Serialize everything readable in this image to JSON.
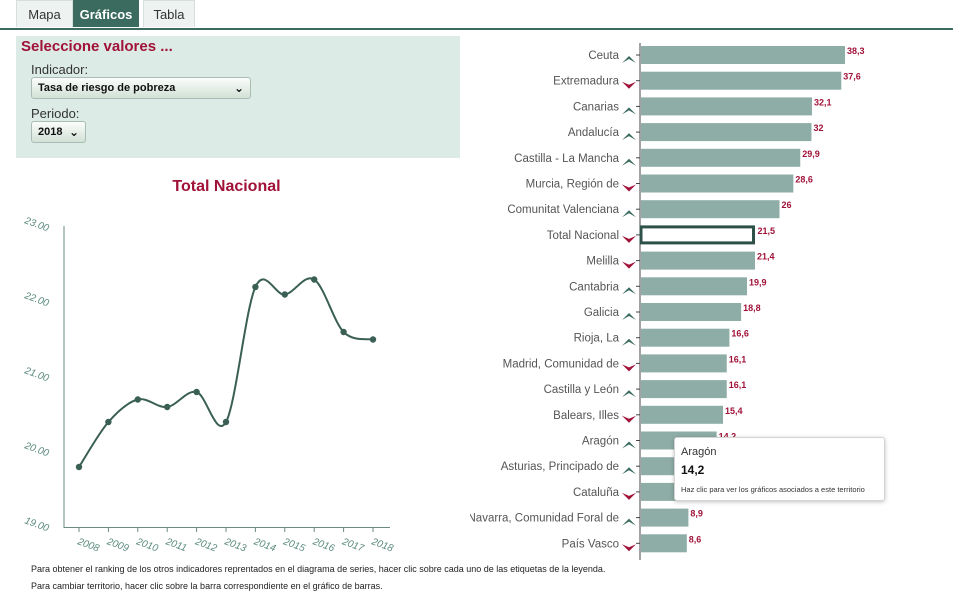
{
  "tabs": [
    {
      "label": "Mapa",
      "active": false
    },
    {
      "label": "Gráficos",
      "active": true
    },
    {
      "label": "Tabla",
      "active": false
    }
  ],
  "selector": {
    "title": "Seleccione valores ...",
    "indicator_label": "Indicador:",
    "indicator_value": "Tasa de riesgo de pobreza",
    "period_label": "Periodo:",
    "period_value": "2018"
  },
  "colors": {
    "accent": "#a11238",
    "line": "#3a5f55",
    "bar": "#8fada7",
    "bar_highlight": "#2d5048",
    "up_arrow": "#3a6b5e",
    "down_arrow": "#a11238"
  },
  "chart_data": [
    {
      "type": "line",
      "title": "Total Nacional",
      "x": [
        "2008",
        "2009",
        "2010",
        "2011",
        "2012",
        "2013",
        "2014",
        "2015",
        "2016",
        "2017",
        "2018"
      ],
      "series": [
        {
          "values": [
            19.8,
            20.4,
            20.7,
            20.6,
            20.8,
            20.4,
            22.2,
            22.1,
            22.3,
            21.6,
            21.5
          ]
        }
      ],
      "y_ticks": [
        "19.00",
        "20.00",
        "21.00",
        "22.00",
        "23.00"
      ],
      "ylim": [
        19,
        23
      ],
      "grid": false
    },
    {
      "type": "bar",
      "orientation": "horizontal",
      "categories": [
        "Ceuta",
        "Extremadura",
        "Canarias",
        "Andalucía",
        "Castilla - La Mancha",
        "Murcia, Región de",
        "Comunitat Valenciana",
        "Total Nacional",
        "Melilla",
        "Cantabria",
        "Galicia",
        "Rioja, La",
        "Madrid, Comunidad de",
        "Castilla y León",
        "Balears, Illes",
        "Aragón",
        "Asturias, Principado de",
        "Cataluña",
        "Navarra, Comunidad Foral de",
        "País Vasco"
      ],
      "values": [
        38.3,
        37.6,
        32.1,
        32,
        29.9,
        28.6,
        26,
        21.5,
        21.4,
        19.9,
        18.8,
        16.6,
        16.1,
        16.1,
        15.4,
        14.2,
        14,
        13.6,
        8.9,
        8.6
      ],
      "value_labels": [
        "38,3",
        "37,6",
        "32,1",
        "32",
        "29,9",
        "28,6",
        "26",
        "21,5",
        "21,4",
        "19,9",
        "18,8",
        "16,6",
        "16,1",
        "16,1",
        "15,4",
        "14,2",
        "14",
        "",
        "8,9",
        "8,6"
      ],
      "trend": [
        "up",
        "down",
        "up",
        "up",
        "up",
        "down",
        "up",
        "down",
        "down",
        "up",
        "up",
        "up",
        "down",
        "up",
        "down",
        "up",
        "up",
        "down",
        "up",
        "down"
      ],
      "highlighted": "Total Nacional"
    }
  ],
  "tooltip": {
    "name": "Aragón",
    "value": "14,2",
    "hint": "Haz clic para ver los gráficos asociados a este territorio"
  },
  "footnotes": [
    "Para obtener el ranking de los otros indicadores reprentados en el diagrama de series, hacer clic sobre cada uno de las etiquetas de la leyenda.",
    "Para cambiar territorio, hacer clic sobre la barra correspondiente en el gráfico de barras."
  ]
}
